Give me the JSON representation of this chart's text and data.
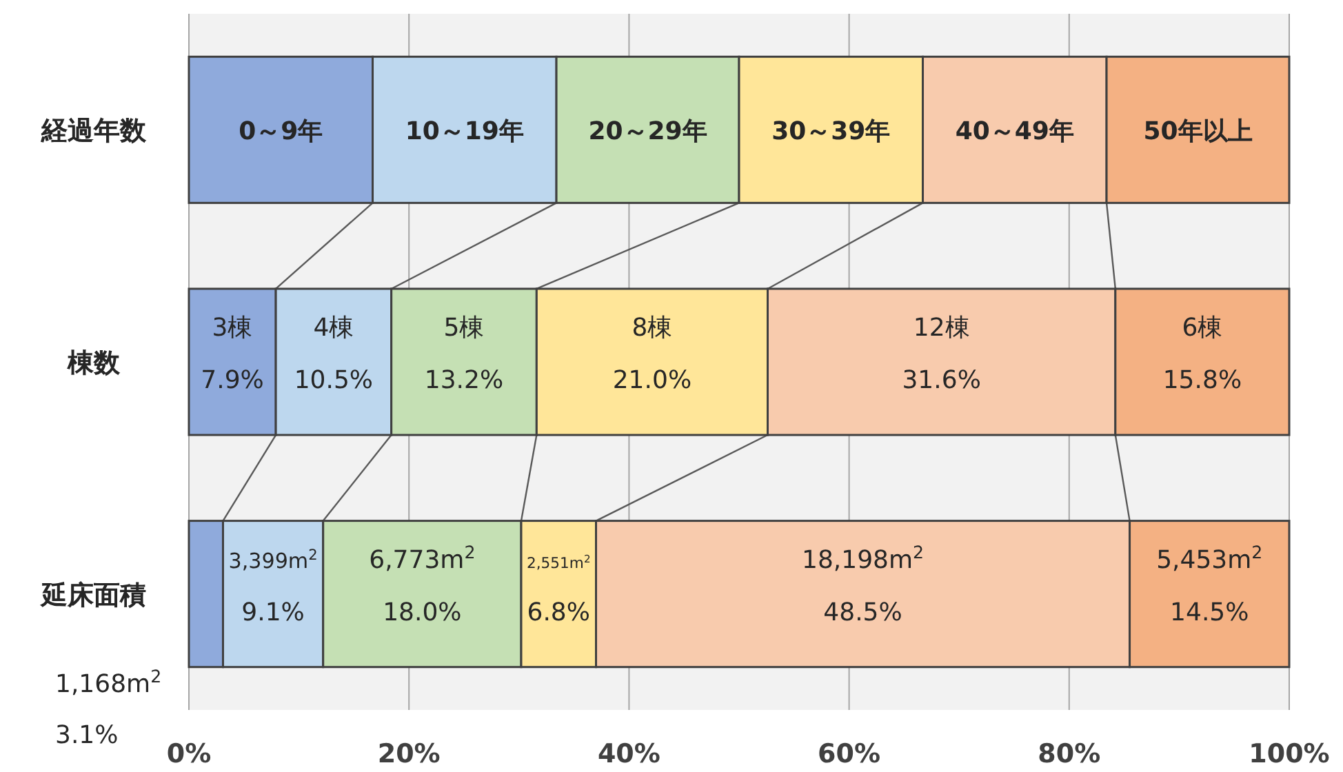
{
  "chart_data": {
    "type": "bar",
    "orientation": "horizontal",
    "stacked": true,
    "categories": [
      "経過年数",
      "棟数",
      "延床面積"
    ],
    "series": [
      {
        "name": "0～9年",
        "color": "#8faadc",
        "values": [
          16.7,
          7.9,
          3.1
        ],
        "value_labels": [
          null,
          "3棟\n7.9%",
          "1,168m$^{2}$\n3.1%"
        ]
      },
      {
        "name": "10～19年",
        "color": "#bdd7ee",
        "values": [
          16.7,
          10.5,
          9.1
        ],
        "value_labels": [
          null,
          "4棟\n10.5%",
          "3,399m$^{2}$\n9.1%"
        ]
      },
      {
        "name": "20～29年",
        "color": "#c5e0b4",
        "values": [
          16.6,
          13.2,
          18.0
        ],
        "value_labels": [
          null,
          "5棟\n13.2%",
          "6,773m$^{2}$\n18.0%"
        ]
      },
      {
        "name": "30～39年",
        "color": "#ffe699",
        "values": [
          16.7,
          21.0,
          6.8
        ],
        "value_labels": [
          null,
          "8棟\n21.0%",
          "2,551m$^{2}$\n6.8%"
        ]
      },
      {
        "name": "40～49年",
        "color": "#f8cbad",
        "values": [
          16.7,
          31.6,
          48.5
        ],
        "value_labels": [
          null,
          "12棟\n31.6%",
          "18,198m$^{2}$\n48.5%"
        ]
      },
      {
        "name": "50年以上",
        "color": "#f4b183",
        "values": [
          16.6,
          15.8,
          14.5
        ],
        "value_labels": [
          null,
          "6棟\n15.8%",
          "5,453m$^{2}$\n14.5%"
        ]
      }
    ],
    "xlim": [
      0,
      100
    ],
    "xticks": [
      {
        "value": 0,
        "label": "0%"
      },
      {
        "value": 20,
        "label": "20%"
      },
      {
        "value": 40,
        "label": "40%"
      },
      {
        "value": 60,
        "label": "60%"
      },
      {
        "value": 80,
        "label": "80%"
      },
      {
        "value": 100,
        "label": "100%"
      }
    ],
    "grid": "x"
  }
}
